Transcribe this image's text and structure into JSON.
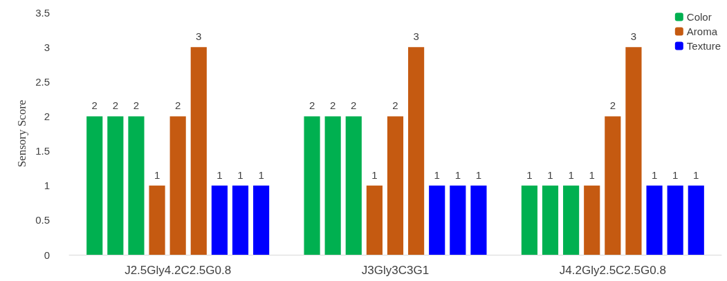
{
  "chart_data": {
    "type": "bar",
    "ylabel": "Sensory Score",
    "categories": [
      "J2.5Gly4.2C2.5G0.8",
      "J3Gly3C3G1",
      "J4.2Gly2.5C2.5G0.8"
    ],
    "series": [
      {
        "name": "Color",
        "color": "#00b050",
        "values": [
          2,
          2,
          1
        ]
      },
      {
        "color": "#00b050",
        "values": [
          2,
          2,
          1
        ]
      },
      {
        "color": "#00b050",
        "values": [
          2,
          2,
          1
        ]
      },
      {
        "name": "Aroma",
        "color": "#c55a11",
        "values": [
          1,
          1,
          1
        ]
      },
      {
        "color": "#c55a11",
        "values": [
          2,
          2,
          2
        ]
      },
      {
        "color": "#c55a11",
        "values": [
          3,
          3,
          3
        ]
      },
      {
        "name": "Texture",
        "color": "#0000ff",
        "values": [
          1,
          1,
          1
        ]
      },
      {
        "color": "#0000ff",
        "values": [
          1,
          1,
          1
        ]
      },
      {
        "color": "#0000ff",
        "values": [
          1,
          1,
          1
        ]
      }
    ],
    "ylim": [
      0,
      3.5
    ],
    "yticks": [
      0,
      0.5,
      1,
      1.5,
      2,
      2.5,
      3,
      3.5
    ],
    "grid": false,
    "legend": "top right",
    "data_labels": true
  }
}
